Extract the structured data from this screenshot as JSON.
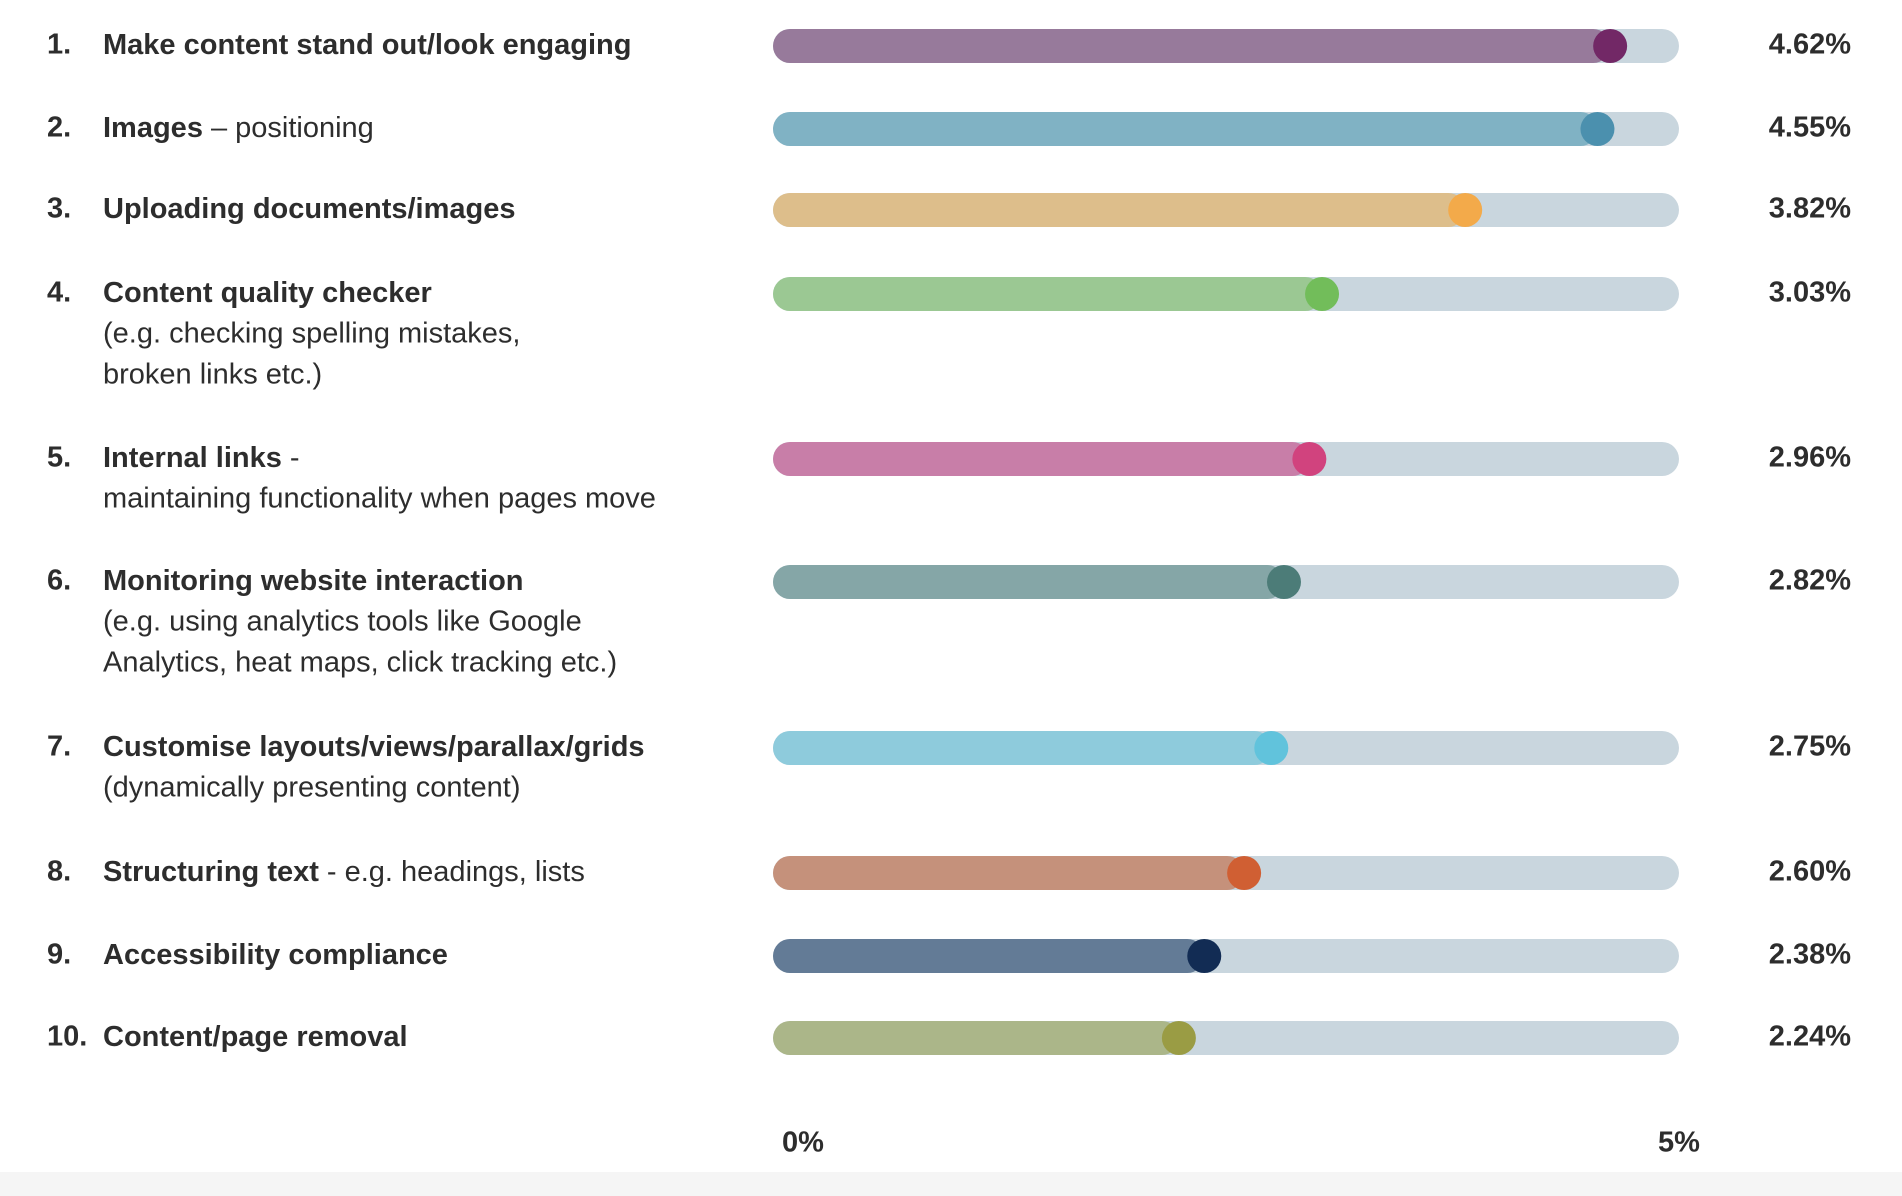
{
  "chart_data": {
    "type": "bar",
    "ranks": [
      "1.",
      "2.",
      "3.",
      "4.",
      "5.",
      "6.",
      "7.",
      "8.",
      "9.",
      "10."
    ],
    "categories": [
      "Make content stand out/look engaging",
      "Images",
      "Uploading documents/images",
      "Content quality checker",
      "Internal links",
      "Monitoring website interaction",
      "Customise layouts/views/parallax/grids",
      "Structuring text",
      "Accessibility compliance",
      "Content/page removal"
    ],
    "inline_notes": [
      null,
      "– positioning",
      null,
      null,
      "-",
      null,
      null,
      "- e.g. headings, lists",
      null,
      null
    ],
    "notes": [
      null,
      null,
      null,
      [
        "(e.g. checking spelling mistakes,",
        "broken links etc.)"
      ],
      [
        "maintaining functionality when pages move"
      ],
      [
        "(e.g. using analytics tools like Google",
        "Analytics, heat maps, click tracking etc.)"
      ],
      [
        "(dynamically presenting content)"
      ],
      null,
      null,
      null
    ],
    "values": [
      4.62,
      4.55,
      3.82,
      3.03,
      2.96,
      2.82,
      2.75,
      2.6,
      2.38,
      2.24
    ],
    "value_labels": [
      "4.62%",
      "4.55%",
      "3.82%",
      "3.03%",
      "2.96%",
      "2.82%",
      "2.75%",
      "2.60%",
      "2.38%",
      "2.24%"
    ],
    "colors": [
      "#977a9b",
      "#80b2c4",
      "#ddbe8b",
      "#9bc893",
      "#c87ea8",
      "#85a6a7",
      "#8ecbdc",
      "#c5917b",
      "#637b96",
      "#abb689"
    ],
    "dot_colors": [
      "#722866",
      "#4b90ae",
      "#f3aa4a",
      "#72bd5a",
      "#d1437e",
      "#4c7c78",
      "#61c3dc",
      "#d05f33",
      "#122c54",
      "#9a9c44"
    ],
    "track_color": "#c9d6de",
    "xlim": [
      0,
      5
    ],
    "xticks": [
      {
        "value": 0,
        "label": "0%"
      },
      {
        "value": 5,
        "label": "5%"
      }
    ]
  }
}
